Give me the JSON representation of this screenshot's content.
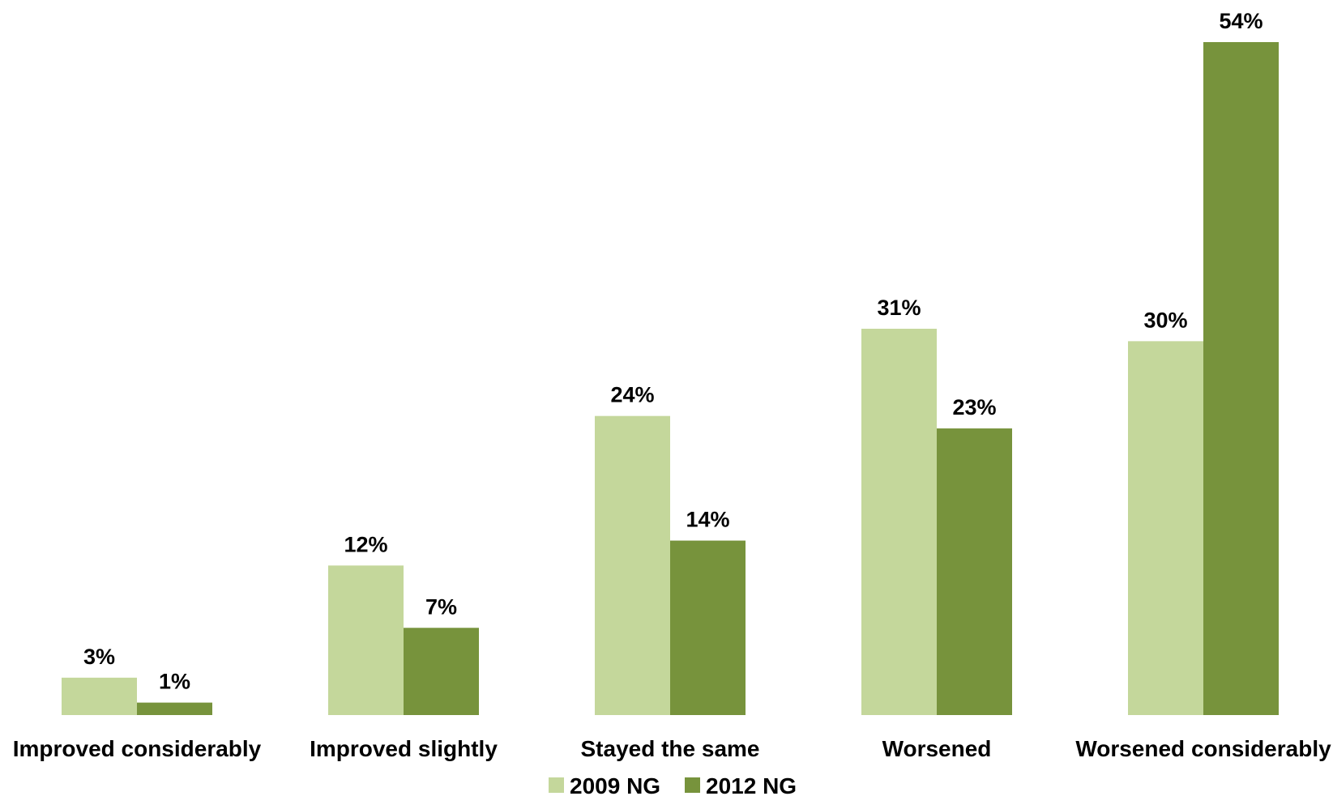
{
  "chart_data": {
    "type": "bar",
    "categories": [
      "Improved considerably",
      "Improved slightly",
      "Stayed the same",
      "Worsened",
      "Worsened considerably"
    ],
    "series": [
      {
        "name": "2009 NG",
        "values": [
          3,
          12,
          24,
          31,
          30
        ],
        "labels": [
          "3%",
          "12%",
          "24%",
          "31%",
          "30%"
        ],
        "color": "#c4d79b"
      },
      {
        "name": "2012 NG",
        "values": [
          1,
          7,
          14,
          23,
          54
        ],
        "labels": [
          "1%",
          "7%",
          "14%",
          "23%",
          "54%"
        ],
        "color": "#77933c"
      }
    ],
    "title": "",
    "xlabel": "",
    "ylabel": "",
    "unit": "%",
    "ylim": [
      0,
      54
    ],
    "grid": false,
    "legend_position": "bottom-center"
  }
}
